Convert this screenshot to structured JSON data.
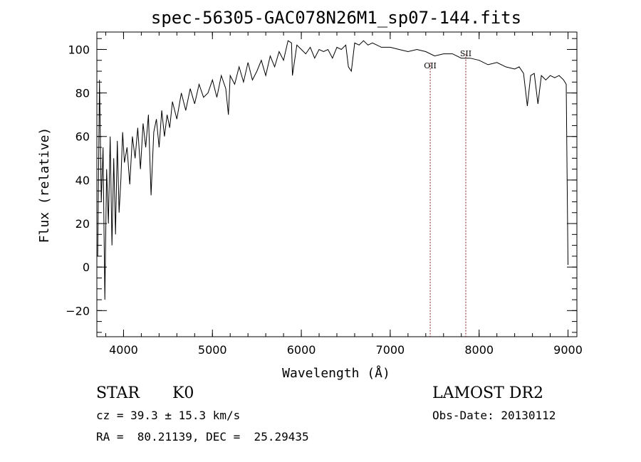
{
  "chart_data": {
    "type": "line",
    "title": "spec-56305-GAC078N26M1_sp07-144.fits",
    "xlabel": "Wavelength (Å)",
    "ylabel": "Flux (relative)",
    "xlim": [
      3700,
      9100
    ],
    "ylim": [
      -32,
      108
    ],
    "xticks": [
      4000,
      5000,
      6000,
      7000,
      8000,
      9000
    ],
    "xtick_labels": [
      "4000",
      "5000",
      "6000",
      "7000",
      "8000",
      "9000"
    ],
    "yticks": [
      -20,
      0,
      20,
      40,
      60,
      80,
      100
    ],
    "ytick_labels": [
      "−20",
      "0",
      "20",
      "40",
      "60",
      "80",
      "100"
    ],
    "grid": false,
    "series_color": "#000000",
    "series": [
      {
        "x": [
          3710,
          3730,
          3750,
          3770,
          3790,
          3810,
          3830,
          3850,
          3870,
          3890,
          3910,
          3930,
          3950,
          3970,
          3990,
          4010,
          4040,
          4070,
          4100,
          4130,
          4160,
          4190,
          4220,
          4250,
          4280,
          4310,
          4340,
          4370,
          4400,
          4430,
          4460,
          4490,
          4520,
          4550,
          4600,
          4650,
          4700,
          4750,
          4800,
          4850,
          4900,
          4950,
          5000,
          5050,
          5100,
          5150,
          5180,
          5200,
          5250,
          5300,
          5350,
          5400,
          5450,
          5500,
          5550,
          5600,
          5650,
          5700,
          5750,
          5800,
          5850,
          5890,
          5900,
          5950,
          6000,
          6050,
          6100,
          6150,
          6200,
          6250,
          6300,
          6350,
          6400,
          6450,
          6500,
          6530,
          6563,
          6600,
          6650,
          6700,
          6750,
          6800,
          6850,
          6900,
          6950,
          7000,
          7100,
          7200,
          7300,
          7400,
          7500,
          7600,
          7700,
          7800,
          7900,
          8000,
          8100,
          8200,
          8300,
          8400,
          8450,
          8500,
          8542,
          8580,
          8620,
          8662,
          8700,
          8750,
          8800,
          8850,
          8900,
          8950,
          8980,
          8990,
          9000
        ],
        "y": [
          5,
          86,
          30,
          55,
          -15,
          45,
          20,
          60,
          10,
          50,
          15,
          58,
          25,
          40,
          62,
          48,
          55,
          38,
          60,
          50,
          64,
          45,
          66,
          55,
          70,
          33,
          62,
          68,
          55,
          72,
          60,
          70,
          64,
          76,
          68,
          80,
          72,
          82,
          75,
          84,
          78,
          80,
          86,
          78,
          88,
          82,
          70,
          88,
          84,
          92,
          85,
          94,
          86,
          90,
          95,
          88,
          97,
          92,
          99,
          95,
          104,
          103,
          88,
          102,
          100,
          98,
          101,
          96,
          100,
          99,
          100,
          96,
          101,
          100,
          102,
          92,
          90,
          103,
          102,
          104,
          102,
          103,
          102,
          101,
          101,
          101,
          100,
          99,
          100,
          99,
          97,
          98,
          98,
          96,
          96,
          95,
          93,
          94,
          92,
          91,
          92,
          89,
          74,
          88,
          89,
          75,
          88,
          86,
          88,
          87,
          88,
          86,
          84,
          40,
          1
        ]
      }
    ],
    "annotations": [
      {
        "label": "OII",
        "x": 7450
      },
      {
        "label": "SII",
        "x": 7850
      }
    ],
    "line_color": "#8b1a1a"
  },
  "info": {
    "object_class": "STAR",
    "subclass": "K0",
    "survey": "LAMOST DR2",
    "redshift": "cz = 39.3 ± 15.3 km/s",
    "obs_date": "Obs-Date: 20130112",
    "coords": "RA =  80.21139, DEC =  25.29435"
  }
}
